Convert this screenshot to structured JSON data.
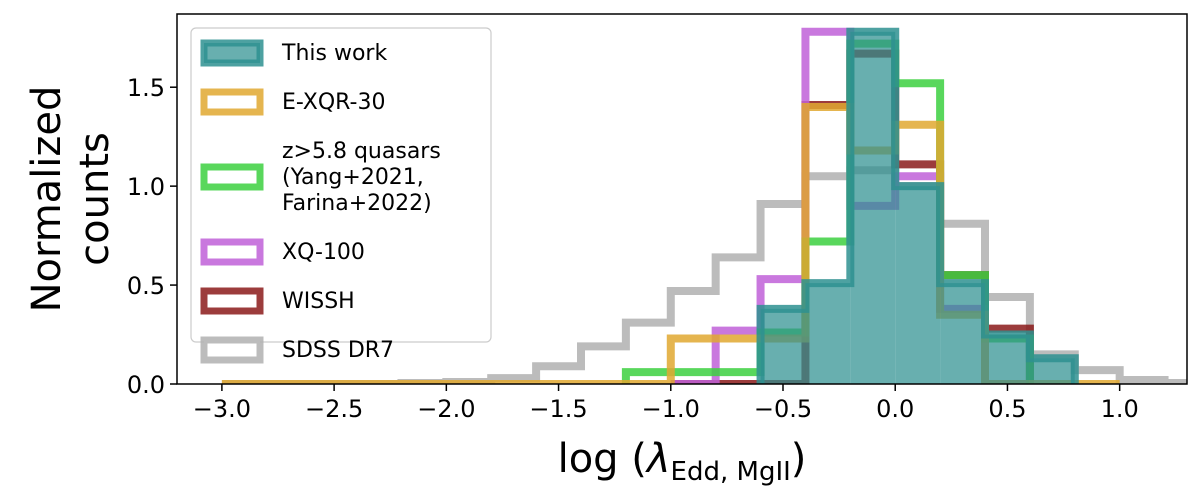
{
  "chart_data": {
    "type": "histogram",
    "title": "",
    "xlabel": "log (λ_Edd, MgII)",
    "xlabel_parts": {
      "prefix": "log (",
      "symbol": "λ",
      "subscript": "Edd, MgII",
      "suffix": ")"
    },
    "ylabel_lines": [
      "Normalized",
      "counts"
    ],
    "xlim": [
      -3.2,
      1.3
    ],
    "ylim": [
      0,
      1.87
    ],
    "xticks": [
      -3.0,
      -2.5,
      -2.0,
      -1.5,
      -1.0,
      -0.5,
      0.0,
      0.5,
      1.0
    ],
    "xtick_labels": [
      "−3.0",
      "−2.5",
      "−2.0",
      "−1.5",
      "−1.0",
      "−0.5",
      "0.0",
      "0.5",
      "1.0"
    ],
    "yticks": [
      0.0,
      0.5,
      1.0,
      1.5
    ],
    "ytick_labels": [
      "0.0",
      "0.5",
      "1.0",
      "1.5"
    ],
    "bin_width": 0.2,
    "legend_position": "upper-left",
    "series": [
      {
        "name": "SDSS DR7",
        "legend_lines": [
          "SDSS DR7"
        ],
        "color": "#b0b0b0",
        "filled": false,
        "bin_start": -3.0,
        "values": [
          0.0,
          0.0,
          0.0,
          0.0,
          0.005,
          0.01,
          0.03,
          0.09,
          0.19,
          0.31,
          0.47,
          0.64,
          0.91,
          1.05,
          1.08,
          1.0,
          0.81,
          0.44,
          0.15,
          0.07,
          0.02,
          0.005
        ]
      },
      {
        "name": "WISSH",
        "legend_lines": [
          "WISSH"
        ],
        "color": "#8b1a1a",
        "filled": false,
        "bin_start": -1.0,
        "values": [
          0.0,
          0.0,
          0.0,
          1.41,
          1.67,
          1.11,
          0.55,
          0.28
        ]
      },
      {
        "name": "XQ-100",
        "legend_lines": [
          "XQ-100"
        ],
        "color": "#c060d8",
        "filled": false,
        "bin_start": -1.0,
        "values": [
          0.0,
          0.27,
          0.53,
          1.78,
          0.9,
          1.05,
          0.38,
          0.0
        ]
      },
      {
        "name": "z>5.8 quasars (Yang+2021, Farina+2022)",
        "legend_lines": [
          "z>5.8 quasars",
          "(Yang+2021,",
          "Farina+2022)"
        ],
        "color": "#3cd040",
        "filled": false,
        "bin_start": -1.2,
        "values": [
          0.06,
          0.06,
          0.06,
          0.26,
          0.72,
          1.72,
          1.52,
          0.55,
          0.23
        ]
      },
      {
        "name": "E-XQR-30",
        "legend_lines": [
          "E-XQR-30"
        ],
        "color": "#e0a830",
        "filled": false,
        "bin_start": -3.0,
        "values": [
          0.0,
          0.0,
          0.0,
          0.0,
          0.0,
          0.0,
          0.0,
          0.0,
          0.0,
          0.0,
          0.23,
          0.23,
          0.23,
          1.4,
          1.18,
          1.31,
          0.35,
          0.0,
          0.0,
          0.0
        ]
      },
      {
        "name": "This work",
        "legend_lines": [
          "This work"
        ],
        "color": "#2e9090",
        "filled": true,
        "bin_start": -0.6,
        "values": [
          0.38,
          0.51,
          1.78,
          1.0,
          0.51,
          0.25,
          0.13
        ]
      }
    ],
    "legend_order": [
      "This work",
      "E-XQR-30",
      "z>5.8 quasars (Yang+2021, Farina+2022)",
      "XQ-100",
      "WISSH",
      "SDSS DR7"
    ]
  }
}
